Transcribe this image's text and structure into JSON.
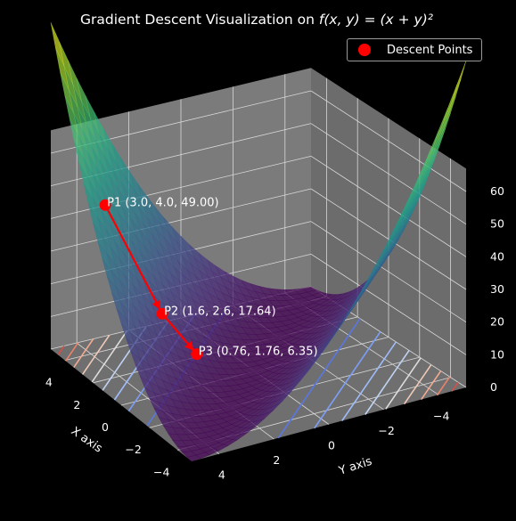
{
  "chart_data": {
    "type": "surface3d",
    "title_prefix": "Gradient Descent Visualization on ",
    "title_math": "f(x, y) = (x + y)²",
    "xlabel": "X axis",
    "ylabel": "Y axis",
    "x_ticks": [
      4,
      2,
      0,
      -2,
      -4
    ],
    "y_ticks": [
      4,
      2,
      0,
      -2,
      -4
    ],
    "z_ticks": [
      0,
      10,
      20,
      30,
      40,
      50,
      60
    ],
    "x_range": [
      -5,
      5
    ],
    "y_range": [
      -5,
      5
    ],
    "z_range": [
      0,
      60
    ],
    "surface_colormap": "viridis",
    "contour_colormap": "coolwarm",
    "grid": true,
    "legend": {
      "position": "top-right",
      "label": "Descent Points",
      "color": "#ff0000"
    },
    "descent_color": "#ff0000",
    "points": [
      {
        "label": "P1 (3.0, 4.0, 49.00)",
        "x": 3.0,
        "y": 4.0,
        "z": 49.0
      },
      {
        "label": "P2 (1.6, 2.6, 17.64)",
        "x": 1.6,
        "y": 2.6,
        "z": 17.64
      },
      {
        "label": "P3 (0.76, 1.76, 6.35)",
        "x": 0.76,
        "y": 1.76,
        "z": 6.35
      }
    ]
  }
}
